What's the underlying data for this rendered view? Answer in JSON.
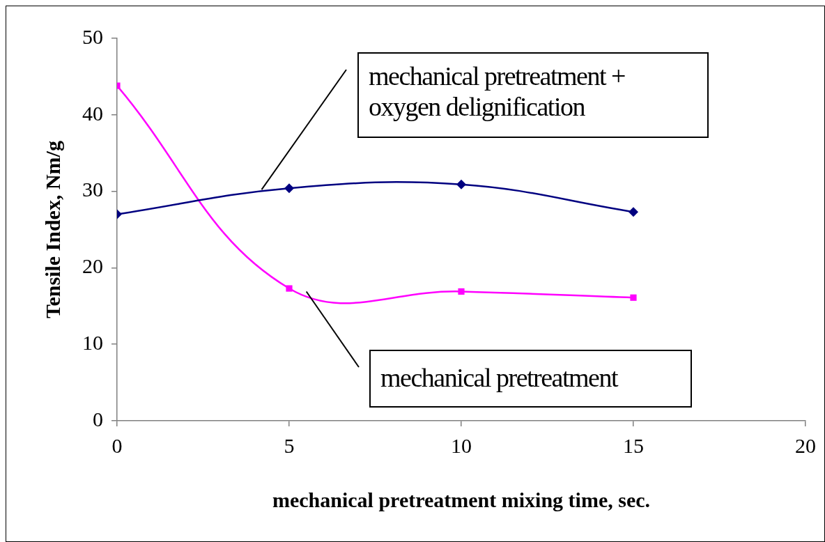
{
  "chart_data": {
    "type": "line",
    "xlabel": "mechanical pretreatment mixing time, sec.",
    "ylabel": "Tensile Index, Nm/g",
    "x": [
      0,
      5,
      10,
      15
    ],
    "series": [
      {
        "name": "mechanical pretreatment + oxygen delignification",
        "color": "#000080",
        "marker": "diamond",
        "values": [
          27,
          30.4,
          30.9,
          27.3
        ]
      },
      {
        "name": "mechanical pretreatment",
        "color": "#ff00ff",
        "marker": "square",
        "values": [
          43.8,
          17.3,
          16.9,
          16.1
        ]
      }
    ],
    "xlim": [
      0,
      20
    ],
    "xticks": [
      0,
      5,
      10,
      15,
      20
    ],
    "ylim": [
      0,
      50
    ],
    "yticks": [
      0,
      10,
      20,
      30,
      40,
      50
    ],
    "grid": false,
    "legend": false
  }
}
